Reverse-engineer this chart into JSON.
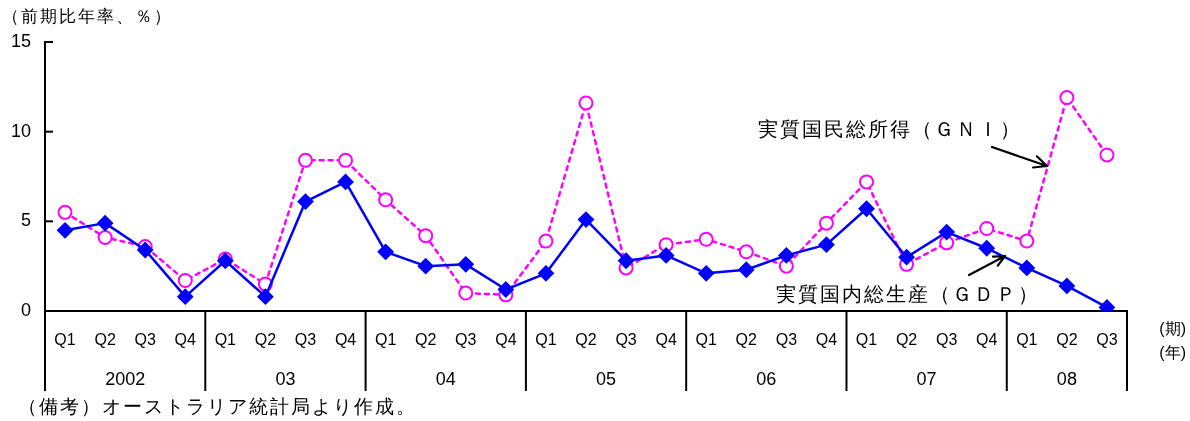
{
  "chart_data": {
    "type": "line",
    "ylabel": "（前期比年率、％）",
    "xlabel": "(期)",
    "categories": [
      "Q1",
      "Q2",
      "Q3",
      "Q4",
      "Q1",
      "Q2",
      "Q3",
      "Q4",
      "Q1",
      "Q2",
      "Q3",
      "Q4",
      "Q1",
      "Q2",
      "Q3",
      "Q4",
      "Q1",
      "Q2",
      "Q3",
      "Q4",
      "Q1",
      "Q2",
      "Q3",
      "Q4",
      "Q1",
      "Q2",
      "Q3"
    ],
    "series": [
      {
        "name": "実質国内総生産（ＧＤＰ）",
        "color": "#0000ff",
        "marker": "diamond",
        "line_style": "solid",
        "values": [
          4.5,
          4.9,
          3.4,
          0.8,
          2.8,
          0.8,
          6.1,
          7.2,
          3.3,
          2.5,
          2.6,
          1.2,
          2.1,
          5.1,
          2.8,
          3.1,
          2.1,
          2.3,
          3.1,
          3.7,
          5.7,
          3.0,
          4.4,
          3.5,
          2.4,
          1.4,
          0.2
        ]
      },
      {
        "name": "実質国民総所得（ＧＮＩ）",
        "color": "#ff00ff",
        "marker": "circle",
        "line_style": "dotted",
        "values": [
          5.5,
          4.1,
          3.6,
          1.7,
          2.9,
          1.5,
          8.4,
          8.4,
          6.2,
          4.2,
          1.0,
          0.9,
          3.9,
          11.6,
          2.4,
          3.7,
          4.0,
          3.3,
          2.5,
          4.9,
          7.2,
          2.6,
          3.8,
          4.6,
          3.9,
          11.9,
          8.7
        ]
      }
    ],
    "ylim": [
      0,
      15
    ],
    "yticks": [
      0,
      5,
      10,
      15
    ],
    "legend": false,
    "annotations": [
      "2002",
      "03",
      "04",
      "05",
      "06",
      "07",
      "08",
      "(年)",
      "（備考）オーストラリア統計局より作成。"
    ]
  }
}
